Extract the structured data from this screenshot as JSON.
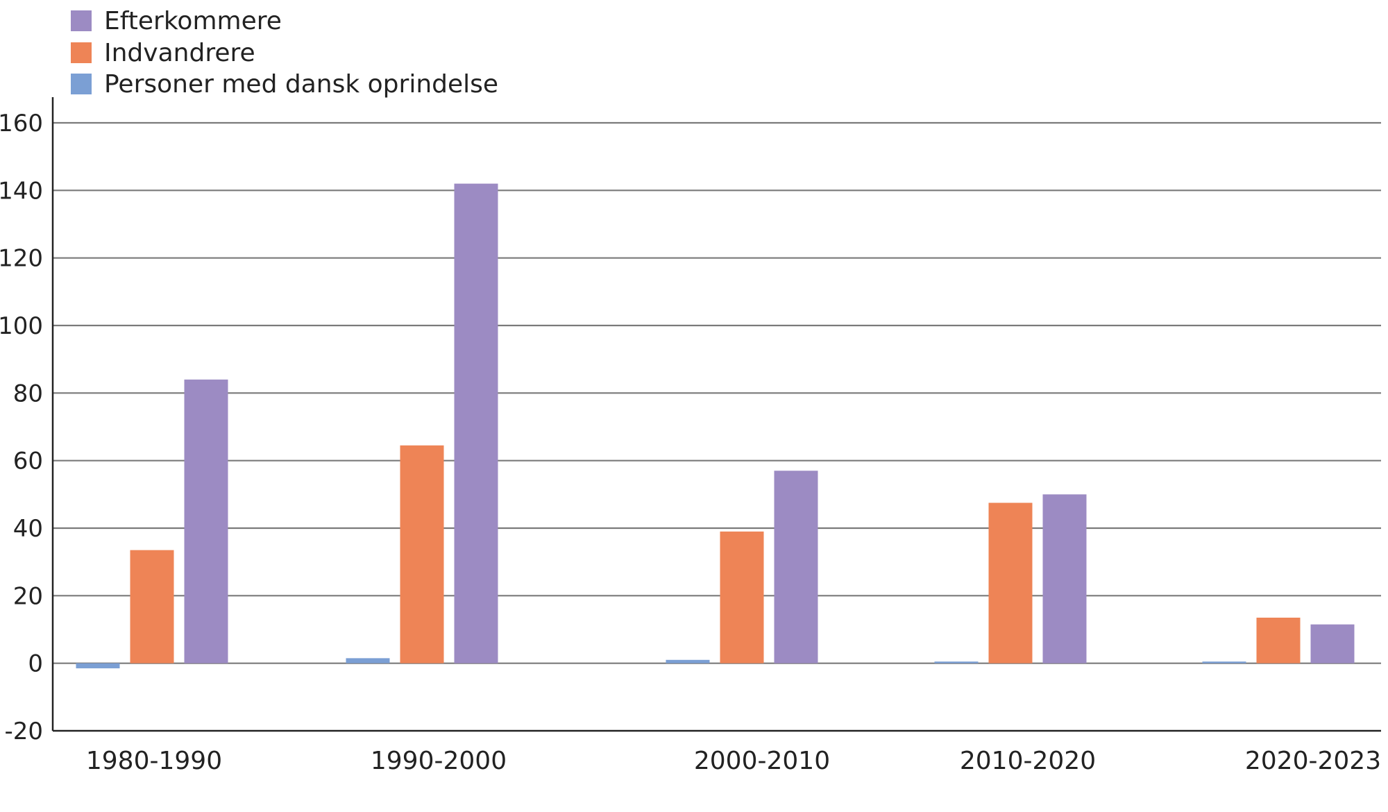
{
  "chart_data": {
    "type": "bar",
    "title": "",
    "xlabel": "",
    "ylabel": "",
    "categories": [
      "1980-1990",
      "1990-2000",
      "2000-2010",
      "2010-2020",
      "2020-2023"
    ],
    "series": [
      {
        "name": "Personer med dansk oprindelse",
        "color": "#7b9fd4",
        "values": [
          -1.5,
          1.5,
          1.0,
          0.5,
          0.5
        ]
      },
      {
        "name": "Indvandrere",
        "color": "#ee8456",
        "values": [
          33.5,
          64.5,
          39,
          47.5,
          13.5
        ]
      },
      {
        "name": "Efterkommere",
        "color": "#9c8bc3",
        "values": [
          84,
          142,
          57,
          50,
          11.5
        ]
      }
    ],
    "legend": {
      "order": [
        "Efterkommere",
        "Indvandrere",
        "Personer med dansk oprindelse"
      ],
      "placement": "top-left"
    },
    "ylim": [
      -20,
      160
    ],
    "yticks": [
      -20,
      0,
      20,
      40,
      60,
      80,
      100,
      120,
      140,
      160
    ],
    "grid": true
  }
}
